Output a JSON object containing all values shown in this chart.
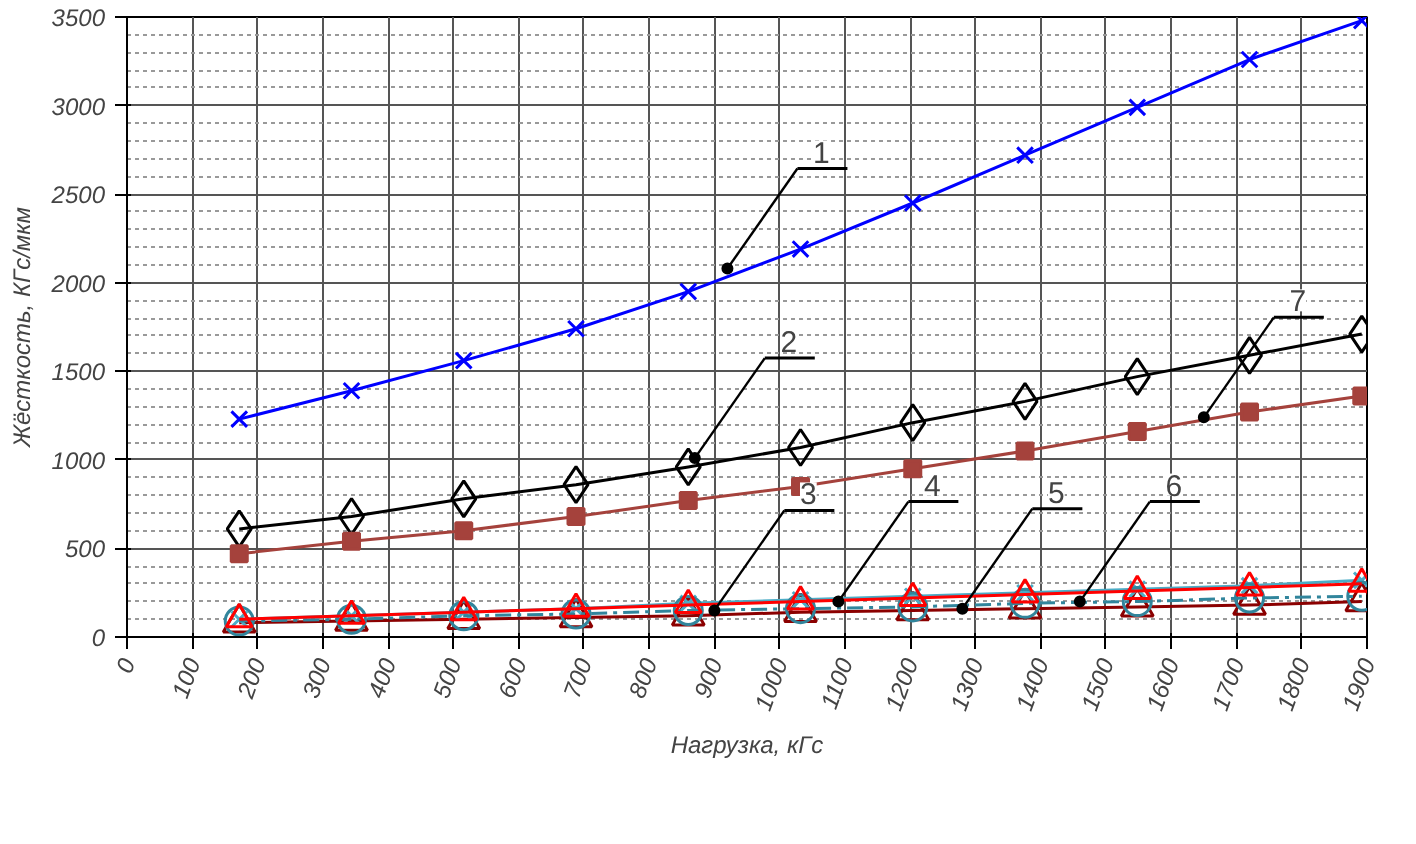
{
  "chart_data": {
    "type": "line",
    "xlabel": "Нагрузка, кГс",
    "ylabel": "Жёсткость, КГс/мкм",
    "x": [
      172,
      344,
      516,
      688,
      860,
      1032,
      1204,
      1376,
      1548,
      1720,
      1892
    ],
    "xlim": [
      0,
      1900
    ],
    "xticks": [
      0,
      100,
      200,
      300,
      400,
      500,
      600,
      700,
      800,
      900,
      1000,
      1100,
      1200,
      1300,
      1400,
      1500,
      1600,
      1700,
      1800,
      1900
    ],
    "ylim": [
      0,
      3500
    ],
    "yticks": [
      0,
      500,
      1000,
      1500,
      2000,
      2500,
      3000,
      3500
    ],
    "grid": true,
    "series": [
      {
        "color": "#0000ff",
        "marker": "cross",
        "values": [
          1230,
          1390,
          1560,
          1740,
          1950,
          2190,
          2450,
          2720,
          2990,
          3260,
          3480
        ]
      },
      {
        "color": "#000000",
        "marker": "diamond",
        "values": [
          610,
          680,
          780,
          860,
          960,
          1070,
          1210,
          1330,
          1470,
          1590,
          1710
        ]
      },
      {
        "color": "#a5423c",
        "marker": "square",
        "values": [
          470,
          540,
          600,
          680,
          770,
          850,
          950,
          1050,
          1160,
          1270,
          1360
        ]
      },
      {
        "color": "#8b0000",
        "marker": "triangle",
        "values": [
          80,
          90,
          100,
          110,
          120,
          140,
          150,
          160,
          170,
          180,
          200
        ]
      },
      {
        "color": "#4bacc6",
        "marker": "cross",
        "values": [
          100,
          120,
          140,
          160,
          190,
          210,
          230,
          250,
          270,
          290,
          320
        ]
      },
      {
        "color": "#31859c",
        "marker": "circle",
        "line_style": "dashed",
        "values": [
          90,
          100,
          120,
          130,
          150,
          160,
          170,
          190,
          200,
          220,
          230
        ]
      },
      {
        "color": "#ff0000",
        "marker": "triangle",
        "values": [
          100,
          120,
          140,
          160,
          180,
          200,
          220,
          240,
          260,
          280,
          300
        ]
      }
    ],
    "annotations": [
      {
        "text": "1",
        "x": 920,
        "y": 2080
      },
      {
        "text": "2",
        "x": 870,
        "y": 1010
      },
      {
        "text": "3",
        "x": 900,
        "y": 150
      },
      {
        "text": "4",
        "x": 1090,
        "y": 200
      },
      {
        "text": "5",
        "x": 1280,
        "y": 160
      },
      {
        "text": "6",
        "x": 1460,
        "y": 200
      },
      {
        "text": "7",
        "x": 1650,
        "y": 1240
      }
    ]
  }
}
